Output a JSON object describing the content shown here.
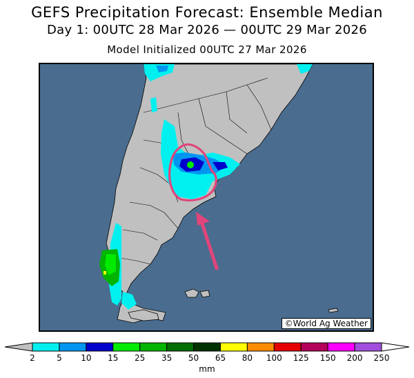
{
  "title": "GEFS Precipitation Forecast: Ensemble Median",
  "subtitle": "Day 1: 00UTC 28 Mar 2026 — 00UTC 29 Mar 2026",
  "init": "Model Initialized 00UTC 27 Mar 2026",
  "credit": "©World Ag Weather",
  "colorbar": {
    "units": "mm",
    "ticks": [
      "2",
      "5",
      "10",
      "15",
      "25",
      "35",
      "50",
      "65",
      "80",
      "100",
      "125",
      "150",
      "200",
      "250"
    ],
    "colors": [
      "#00f0f0",
      "#0096f0",
      "#0000cd",
      "#00eb00",
      "#00b400",
      "#006e00",
      "#003200",
      "#ffff00",
      "#ff8c00",
      "#e60000",
      "#b4005a",
      "#ff00ff",
      "#a050dc"
    ]
  },
  "colors": {
    "ocean": "#4a6c8e",
    "land": "#c0c0c0",
    "highlight": "#e0457b"
  }
}
